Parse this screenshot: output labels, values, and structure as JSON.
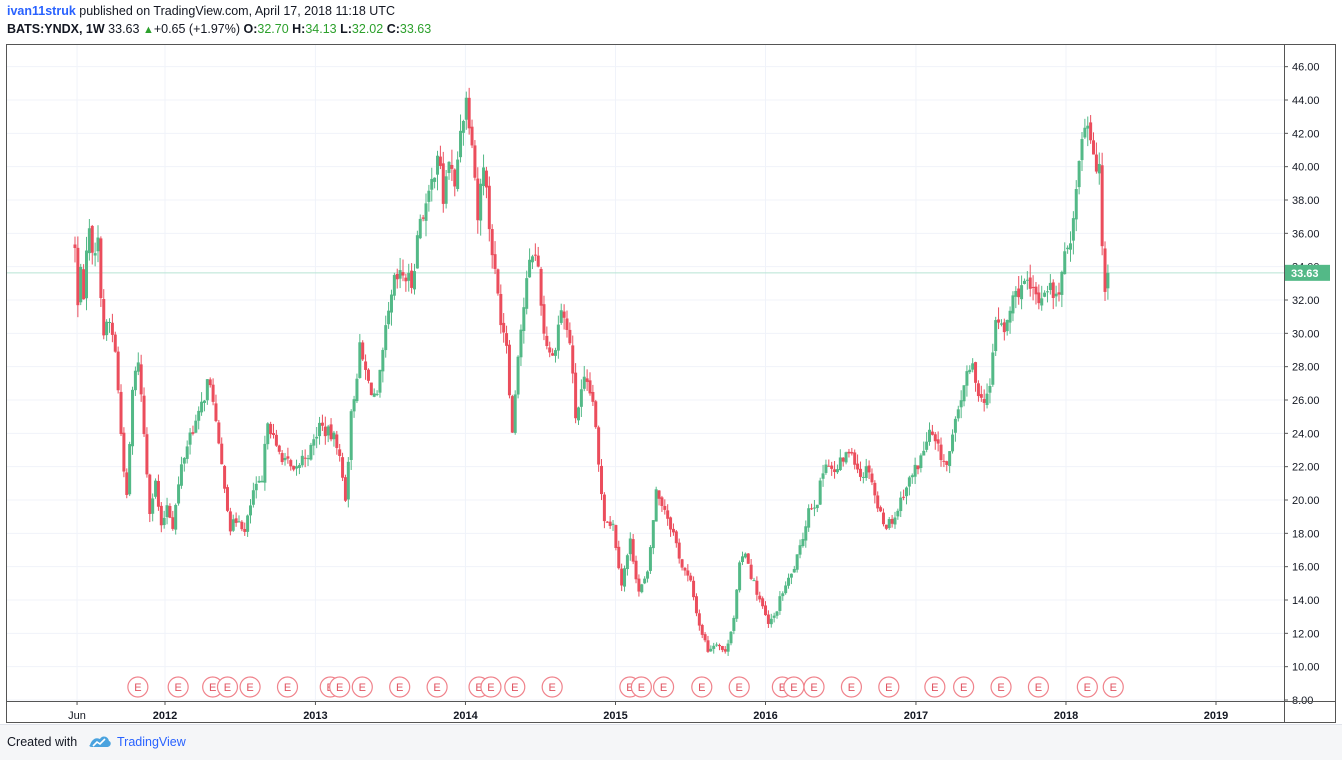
{
  "header": {
    "author": "ivan11struk",
    "published_text": " published on TradingView.com, April 17, 2018 11:18 UTC",
    "symbol": "BATS:YNDX, 1W",
    "last": "33.63",
    "change": "+0.65 (+1.97%)",
    "open_label": "O:",
    "open": "32.70",
    "high_label": "H:",
    "high": "34.13",
    "low_label": "L:",
    "low": "32.02",
    "close_label": "C:",
    "close": "33.63"
  },
  "footer": {
    "created_with": "Created with",
    "brand": "TradingView"
  },
  "colors": {
    "up": "#53b987",
    "down": "#eb4d5c",
    "grid": "#f0f3fa",
    "axis": "#555555",
    "price_line": "#b7e4d4",
    "earnings": "#f0838c"
  },
  "chart_data": {
    "type": "candlestick",
    "title": "",
    "symbol": "BATS:YNDX",
    "interval": "1W",
    "last_price": 33.63,
    "ylim": [
      8,
      47
    ],
    "y_ticks": [
      "8.00",
      "10.00",
      "12.00",
      "14.00",
      "16.00",
      "18.00",
      "20.00",
      "22.00",
      "24.00",
      "26.00",
      "28.00",
      "30.00",
      "32.00",
      "34.00",
      "36.00",
      "38.00",
      "40.00",
      "42.00",
      "44.00",
      "46.00"
    ],
    "x_ticks": [
      {
        "label": "Jun",
        "date": "2011-06-01"
      },
      {
        "label": "2012",
        "date": "2012-01-01"
      },
      {
        "label": "2013",
        "date": "2013-01-01"
      },
      {
        "label": "2014",
        "date": "2014-01-01"
      },
      {
        "label": "2015",
        "date": "2015-01-01"
      },
      {
        "label": "2016",
        "date": "2016-01-01"
      },
      {
        "label": "2017",
        "date": "2017-01-01"
      },
      {
        "label": "2018",
        "date": "2018-01-01"
      },
      {
        "label": "2019",
        "date": "2019-01-01"
      }
    ],
    "earnings_marker_label": "E",
    "earnings_dates": [
      "2011-10-27",
      "2012-02-02",
      "2012-04-26",
      "2012-06-01",
      "2012-07-26",
      "2012-10-25",
      "2013-02-06",
      "2013-03-01",
      "2013-04-25",
      "2013-07-25",
      "2013-10-24",
      "2014-02-03",
      "2014-03-04",
      "2014-05-01",
      "2014-07-31",
      "2015-02-05",
      "2015-03-05",
      "2015-04-28",
      "2015-07-30",
      "2015-10-29",
      "2016-02-11",
      "2016-03-10",
      "2016-04-28",
      "2016-07-28",
      "2016-10-27",
      "2017-02-16",
      "2017-04-27",
      "2017-07-27",
      "2017-10-26",
      "2018-02-22",
      "2018-04-26"
    ],
    "anchors": [
      [
        "2011-05-27",
        35.0
      ],
      [
        "2011-06-03",
        31.5
      ],
      [
        "2011-06-10",
        34.5
      ],
      [
        "2011-06-17",
        31.5
      ],
      [
        "2011-06-24",
        35.5
      ],
      [
        "2011-07-01",
        36.0
      ],
      [
        "2011-07-08",
        35.2
      ],
      [
        "2011-07-22",
        35.3
      ],
      [
        "2011-08-05",
        30.0
      ],
      [
        "2011-08-19",
        30.6
      ],
      [
        "2011-09-02",
        29.0
      ],
      [
        "2011-09-16",
        24.0
      ],
      [
        "2011-09-30",
        20.0
      ],
      [
        "2011-10-14",
        26.5
      ],
      [
        "2011-10-28",
        28.5
      ],
      [
        "2011-11-11",
        24.0
      ],
      [
        "2011-11-25",
        19.5
      ],
      [
        "2011-12-09",
        21.0
      ],
      [
        "2011-12-23",
        18.2
      ],
      [
        "2012-01-06",
        19.8
      ],
      [
        "2012-01-20",
        18.5
      ],
      [
        "2012-02-10",
        22.0
      ],
      [
        "2012-03-02",
        24.0
      ],
      [
        "2012-03-23",
        25.0
      ],
      [
        "2012-04-13",
        27.0
      ],
      [
        "2012-04-27",
        26.2
      ],
      [
        "2012-05-11",
        23.0
      ],
      [
        "2012-05-25",
        21.0
      ],
      [
        "2012-06-08",
        18.3
      ],
      [
        "2012-06-29",
        19.0
      ],
      [
        "2012-07-13",
        18.0
      ],
      [
        "2012-08-03",
        20.5
      ],
      [
        "2012-08-24",
        21.0
      ],
      [
        "2012-09-07",
        25.0
      ],
      [
        "2012-09-28",
        23.0
      ],
      [
        "2012-10-19",
        22.5
      ],
      [
        "2012-11-09",
        21.5
      ],
      [
        "2012-11-30",
        22.5
      ],
      [
        "2012-12-21",
        23.0
      ],
      [
        "2013-01-11",
        24.5
      ],
      [
        "2013-02-01",
        24.0
      ],
      [
        "2013-02-22",
        23.5
      ],
      [
        "2013-03-15",
        20.2
      ],
      [
        "2013-03-29",
        25.0
      ],
      [
        "2013-04-19",
        29.0
      ],
      [
        "2013-05-10",
        27.0
      ],
      [
        "2013-05-31",
        26.0
      ],
      [
        "2013-06-21",
        30.0
      ],
      [
        "2013-07-12",
        33.0
      ],
      [
        "2013-08-02",
        33.5
      ],
      [
        "2013-08-23",
        33.0
      ],
      [
        "2013-09-13",
        37.0
      ],
      [
        "2013-10-04",
        38.0
      ],
      [
        "2013-10-25",
        41.0
      ],
      [
        "2013-11-08",
        38.0
      ],
      [
        "2013-11-22",
        40.5
      ],
      [
        "2013-12-06",
        38.5
      ],
      [
        "2013-12-20",
        42.5
      ],
      [
        "2014-01-03",
        44.0
      ],
      [
        "2014-01-17",
        42.0
      ],
      [
        "2014-01-31",
        37.0
      ],
      [
        "2014-02-14",
        40.5
      ],
      [
        "2014-02-28",
        36.5
      ],
      [
        "2014-03-14",
        33.5
      ],
      [
        "2014-03-28",
        31.0
      ],
      [
        "2014-04-11",
        29.5
      ],
      [
        "2014-04-25",
        24.0
      ],
      [
        "2014-05-09",
        29.0
      ],
      [
        "2014-05-30",
        33.0
      ],
      [
        "2014-06-13",
        35.0
      ],
      [
        "2014-06-27",
        34.0
      ],
      [
        "2014-07-11",
        30.0
      ],
      [
        "2014-08-01",
        28.5
      ],
      [
        "2014-08-22",
        31.5
      ],
      [
        "2014-09-12",
        29.5
      ],
      [
        "2014-09-26",
        25.0
      ],
      [
        "2014-10-17",
        27.0
      ],
      [
        "2014-11-07",
        26.0
      ],
      [
        "2014-11-21",
        22.0
      ],
      [
        "2014-12-05",
        19.0
      ],
      [
        "2014-12-26",
        18.5
      ],
      [
        "2015-01-16",
        15.0
      ],
      [
        "2015-02-06",
        17.5
      ],
      [
        "2015-02-27",
        14.5
      ],
      [
        "2015-03-20",
        15.5
      ],
      [
        "2015-04-10",
        20.5
      ],
      [
        "2015-05-01",
        19.5
      ],
      [
        "2015-05-22",
        18.0
      ],
      [
        "2015-06-12",
        16.0
      ],
      [
        "2015-07-03",
        15.0
      ],
      [
        "2015-07-24",
        12.5
      ],
      [
        "2015-08-14",
        11.0
      ],
      [
        "2015-09-04",
        11.5
      ],
      [
        "2015-09-25",
        10.8
      ],
      [
        "2015-10-16",
        13.0
      ],
      [
        "2015-10-30",
        16.0
      ],
      [
        "2015-11-13",
        17.0
      ],
      [
        "2015-11-27",
        15.5
      ],
      [
        "2015-12-18",
        14.0
      ],
      [
        "2016-01-08",
        12.5
      ],
      [
        "2016-01-22",
        13.0
      ],
      [
        "2016-02-12",
        14.5
      ],
      [
        "2016-03-04",
        15.5
      ],
      [
        "2016-03-25",
        17.0
      ],
      [
        "2016-04-15",
        19.5
      ],
      [
        "2016-05-06",
        20.0
      ],
      [
        "2016-05-27",
        22.5
      ],
      [
        "2016-06-17",
        21.5
      ],
      [
        "2016-07-08",
        22.5
      ],
      [
        "2016-07-29",
        23.0
      ],
      [
        "2016-08-19",
        21.5
      ],
      [
        "2016-09-09",
        22.0
      ],
      [
        "2016-09-30",
        19.5
      ],
      [
        "2016-10-21",
        18.5
      ],
      [
        "2016-11-11",
        19.0
      ],
      [
        "2016-12-02",
        20.5
      ],
      [
        "2016-12-23",
        21.5
      ],
      [
        "2017-01-13",
        22.5
      ],
      [
        "2017-02-03",
        24.0
      ],
      [
        "2017-02-24",
        23.0
      ],
      [
        "2017-03-17",
        22.0
      ],
      [
        "2017-04-07",
        24.5
      ],
      [
        "2017-04-28",
        27.0
      ],
      [
        "2017-05-19",
        28.0
      ],
      [
        "2017-06-09",
        26.0
      ],
      [
        "2017-06-30",
        26.5
      ],
      [
        "2017-07-14",
        31.0
      ],
      [
        "2017-08-04",
        30.0
      ],
      [
        "2017-08-25",
        32.0
      ],
      [
        "2017-09-15",
        33.0
      ],
      [
        "2017-10-06",
        32.5
      ],
      [
        "2017-10-27",
        32.0
      ],
      [
        "2017-11-17",
        33.0
      ],
      [
        "2017-12-08",
        32.0
      ],
      [
        "2017-12-22",
        33.5
      ],
      [
        "2018-01-12",
        36.0
      ],
      [
        "2018-01-26",
        38.5
      ],
      [
        "2018-02-09",
        42.0
      ],
      [
        "2018-02-23",
        43.0
      ],
      [
        "2018-03-09",
        41.0
      ],
      [
        "2018-03-23",
        39.5
      ],
      [
        "2018-03-30",
        35.5
      ],
      [
        "2018-04-06",
        32.98
      ],
      [
        "2018-04-13",
        33.63
      ]
    ]
  }
}
